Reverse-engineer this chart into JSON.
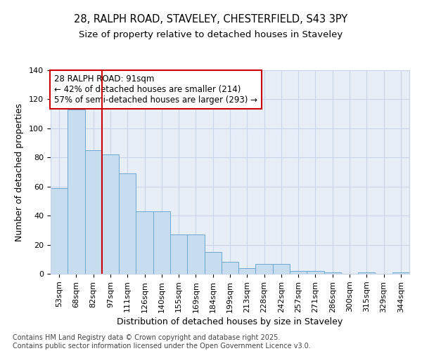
{
  "title1": "28, RALPH ROAD, STAVELEY, CHESTERFIELD, S43 3PY",
  "title2": "Size of property relative to detached houses in Staveley",
  "xlabel": "Distribution of detached houses by size in Staveley",
  "ylabel": "Number of detached properties",
  "bins": [
    "53sqm",
    "68sqm",
    "82sqm",
    "97sqm",
    "111sqm",
    "126sqm",
    "140sqm",
    "155sqm",
    "169sqm",
    "184sqm",
    "199sqm",
    "213sqm",
    "228sqm",
    "242sqm",
    "257sqm",
    "271sqm",
    "286sqm",
    "300sqm",
    "315sqm",
    "329sqm",
    "344sqm"
  ],
  "values": [
    59,
    113,
    85,
    82,
    69,
    43,
    43,
    27,
    27,
    15,
    8,
    4,
    7,
    7,
    2,
    2,
    1,
    0,
    1,
    0,
    1
  ],
  "bar_color": "#c8dcf0",
  "bar_edge_color": "#6aaad4",
  "vline_x": 2.5,
  "vline_color": "#cc0000",
  "annotation_text": "28 RALPH ROAD: 91sqm\n← 42% of detached houses are smaller (214)\n57% of semi-detached houses are larger (293) →",
  "annotation_box_color": "#cc0000",
  "ylim": [
    0,
    140
  ],
  "yticks": [
    0,
    20,
    40,
    60,
    80,
    100,
    120,
    140
  ],
  "grid_color": "#c8d4e8",
  "bg_color": "#e8eef8",
  "footer": "Contains HM Land Registry data © Crown copyright and database right 2025.\nContains public sector information licensed under the Open Government Licence v3.0.",
  "title_fontsize": 10.5,
  "subtitle_fontsize": 9.5,
  "axis_label_fontsize": 9,
  "tick_fontsize": 8,
  "annotation_fontsize": 8.5,
  "footer_fontsize": 7
}
